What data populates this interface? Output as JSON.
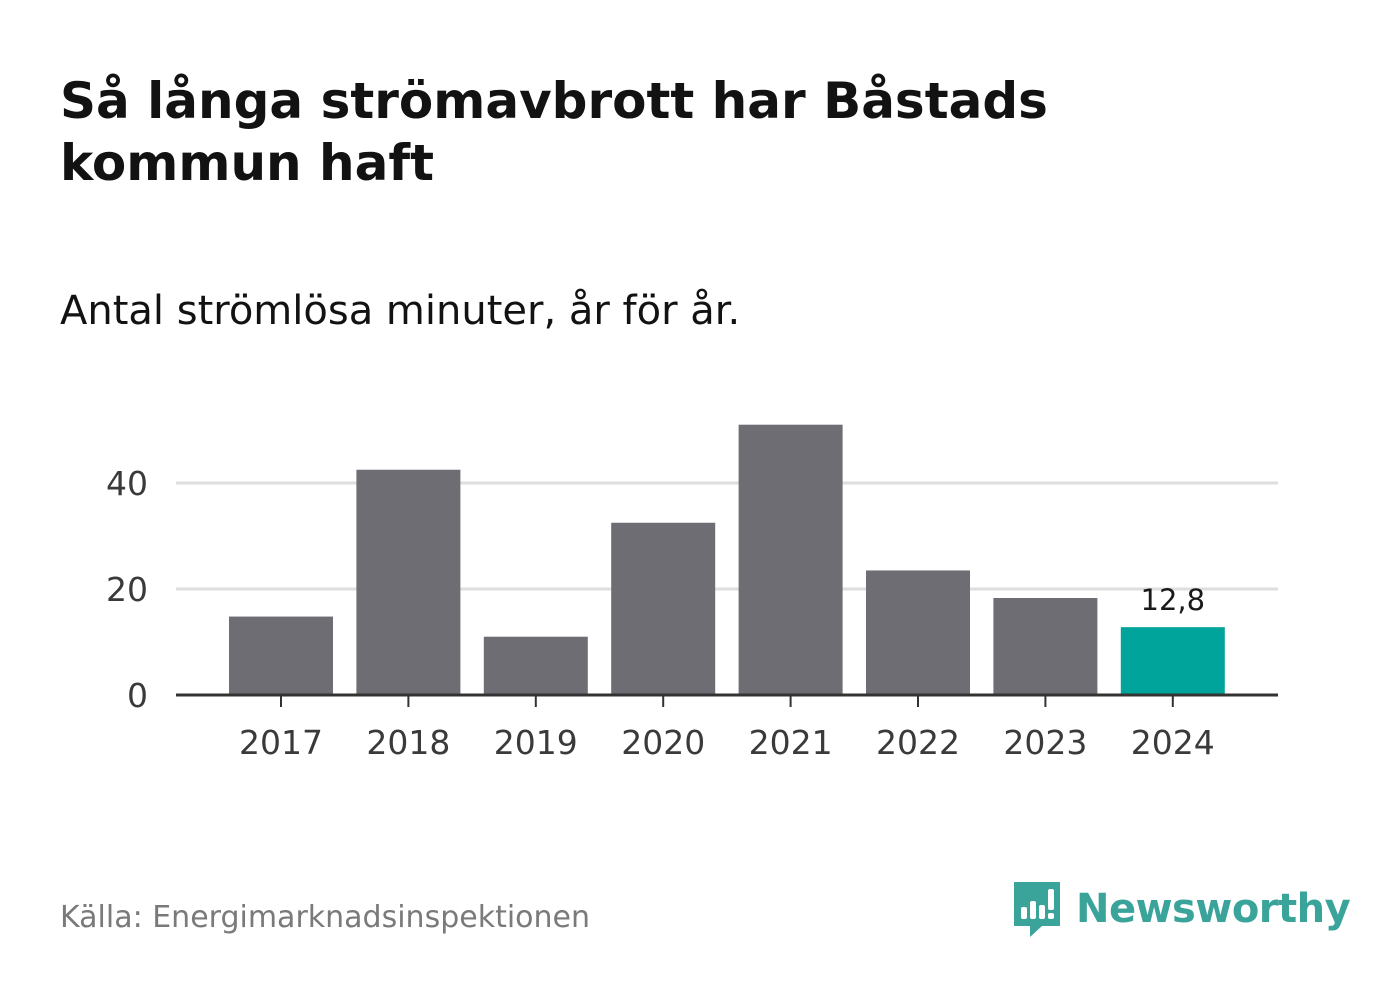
{
  "chart_data": {
    "type": "bar",
    "title": "Så långa strömavbrott har Båstads kommun haft",
    "subtitle": "Antal strömlösa minuter, år för år.",
    "categories": [
      "2017",
      "2018",
      "2019",
      "2020",
      "2021",
      "2022",
      "2023",
      "2024"
    ],
    "values": [
      14.8,
      42.5,
      11.0,
      32.5,
      51.0,
      23.5,
      18.3,
      12.8
    ],
    "highlight_index": 7,
    "highlight_label": "12,8",
    "ylim": [
      0,
      52
    ],
    "yticks": [
      0,
      20,
      40
    ],
    "xlabel": "",
    "ylabel": "",
    "grid": true,
    "colors": {
      "bar": "#6e6d73",
      "highlight": "#00a49a",
      "grid": "#dedede",
      "axis": "#333333"
    }
  },
  "source": "Källa: Energimarknadsinspektionen",
  "brand": {
    "name": "Newsworthy",
    "icon": "newsworthy-logo-icon",
    "color": "#3aa49a"
  }
}
